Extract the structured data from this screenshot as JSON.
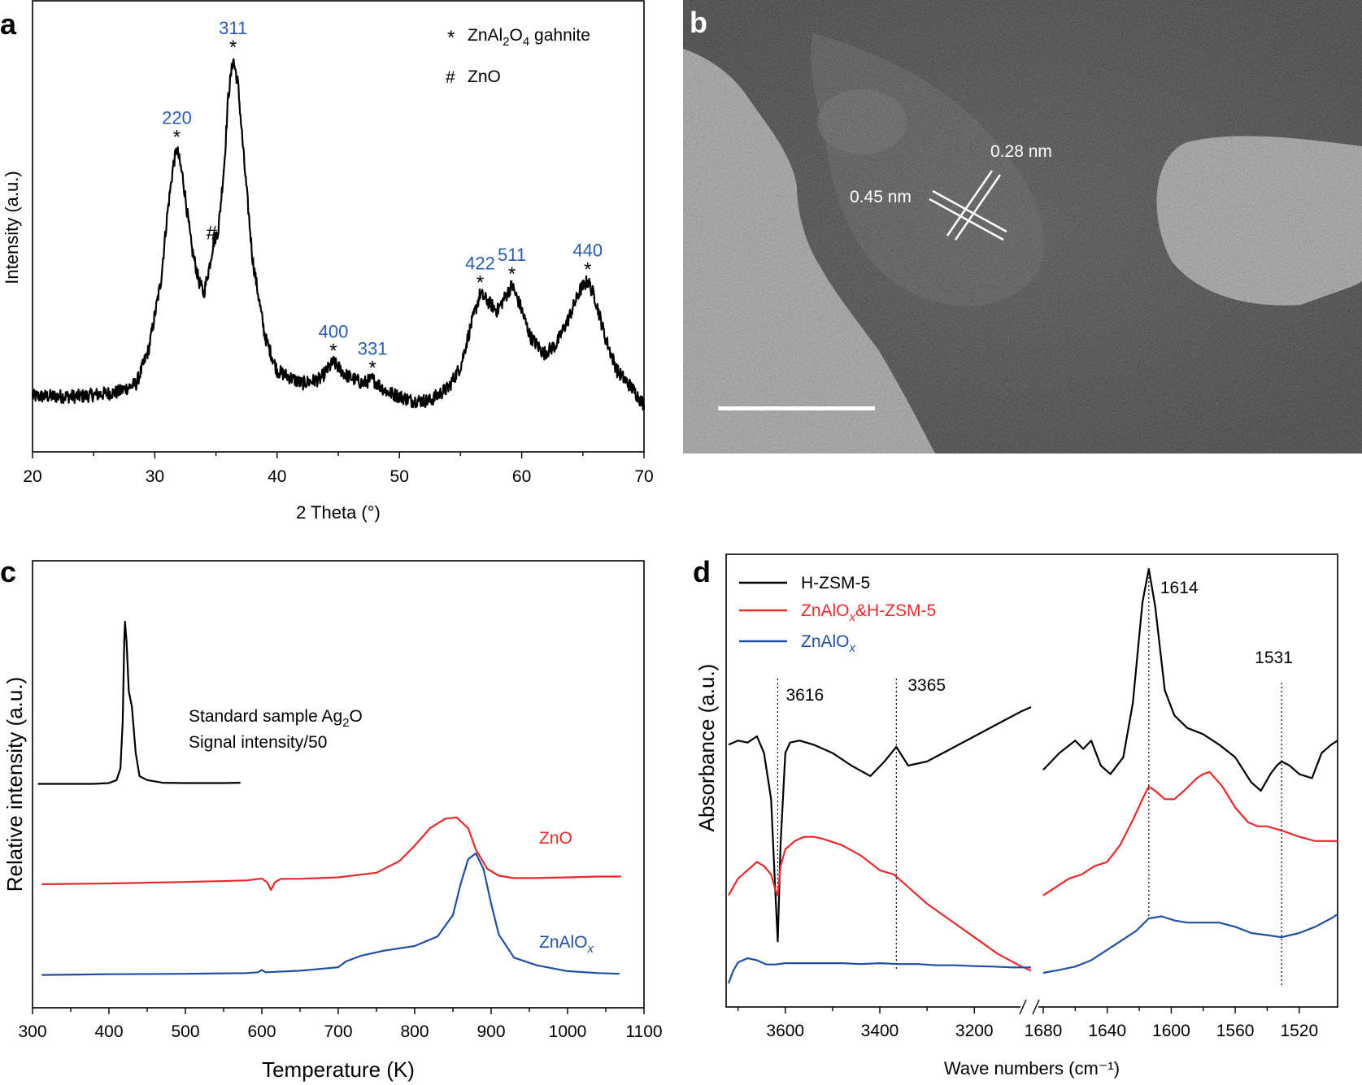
{
  "colors": {
    "black": "#000000",
    "red": "#e8282b",
    "blue": "#1f4fa3",
    "label_blue": "#2a5db0"
  },
  "panels": {
    "a": "a",
    "b": "b",
    "c": "c",
    "d": "d"
  },
  "chart_data": [
    {
      "panel": "a",
      "type": "line",
      "title": "",
      "xlabel": "2 Theta (°)",
      "ylabel": "Intensity (a.u.)",
      "xlim": [
        20,
        70
      ],
      "ylim": [
        0,
        100
      ],
      "xticks": [
        "20",
        "30",
        "40",
        "50",
        "60",
        "70"
      ],
      "series": [
        {
          "name": "XRD",
          "color": "#000000",
          "x": [
            20,
            24,
            27,
            28.5,
            29.5,
            30.5,
            31,
            31.5,
            31.8,
            32.3,
            33,
            33.6,
            34,
            34.5,
            34.8,
            35.2,
            35.7,
            36,
            36.4,
            36.8,
            37.3,
            38,
            39,
            40,
            42,
            43.5,
            44.6,
            45.6,
            47,
            47.8,
            49,
            51,
            52.5,
            54,
            55,
            55.8,
            56.6,
            57.3,
            58,
            58.6,
            59.2,
            59.9,
            60.7,
            61.8,
            62.8,
            63.8,
            64.8,
            65.4,
            66,
            66.8,
            67.8,
            69,
            70
          ],
          "y": [
            13,
            13,
            14,
            16,
            24,
            40,
            55,
            67,
            71,
            64,
            48,
            40,
            37,
            44,
            49,
            52,
            68,
            83,
            92,
            86,
            68,
            45,
            27,
            19,
            16,
            17,
            21,
            18,
            16,
            17,
            14,
            12,
            12,
            15,
            20,
            29,
            37,
            35,
            33,
            36,
            39,
            34,
            27,
            23,
            25,
            31,
            38,
            40,
            36,
            27,
            19,
            15,
            11
          ]
        }
      ],
      "peaks": [
        {
          "hkl": "220",
          "marker": "*",
          "x": 31.8,
          "y": 71
        },
        {
          "hkl": "#",
          "marker": "",
          "x": 34.6,
          "y": 49
        },
        {
          "hkl": "311",
          "marker": "*",
          "x": 36.4,
          "y": 92
        },
        {
          "hkl": "400",
          "marker": "*",
          "x": 44.6,
          "y": 21
        },
        {
          "hkl": "331",
          "marker": "*",
          "x": 47.8,
          "y": 17
        },
        {
          "hkl": "422",
          "marker": "*",
          "x": 56.6,
          "y": 37
        },
        {
          "hkl": "511",
          "marker": "*",
          "x": 59.2,
          "y": 39
        },
        {
          "hkl": "440",
          "marker": "*",
          "x": 65.4,
          "y": 40
        }
      ],
      "legend": [
        {
          "symbol": "*",
          "label": "ZnAl",
          "sub1": "2",
          "mid": "O",
          "sub2": "4",
          "tail": " gahnite"
        },
        {
          "symbol": "#",
          "label": "ZnO"
        }
      ]
    },
    {
      "panel": "c",
      "type": "line",
      "xlabel": "Temperature (K)",
      "ylabel": "Relative intensity (a.u.)",
      "xlim": [
        300,
        1100
      ],
      "ylim": [
        0,
        100
      ],
      "xticks": [
        "300",
        "400",
        "500",
        "600",
        "700",
        "800",
        "900",
        "1000",
        "1100"
      ],
      "inset_note": {
        "line1_a": "Standard sample Ag",
        "line1_sub": "2",
        "line1_b": "O",
        "line2": "Signal intensity/50"
      },
      "series": [
        {
          "name": "Standard sample Ag2O",
          "color": "#000000",
          "x": [
            307,
            340,
            380,
            400,
            410,
            415,
            418,
            420,
            421,
            423,
            426,
            430,
            435,
            440,
            450,
            470,
            500,
            550,
            572
          ],
          "y": [
            58,
            58,
            58,
            58.2,
            59,
            62,
            74,
            95,
            100,
            95,
            82,
            78,
            66,
            60,
            59,
            58.3,
            58.2,
            58.2,
            58.3
          ]
        },
        {
          "name": "ZnO",
          "label": "ZnO",
          "color": "#e8282b",
          "x": [
            312,
            400,
            500,
            580,
            600,
            607,
            612,
            617,
            625,
            650,
            700,
            750,
            780,
            800,
            820,
            840,
            855,
            870,
            880,
            895,
            910,
            930,
            960,
            1000,
            1040,
            1070
          ],
          "y": [
            32,
            32.2,
            32.6,
            33,
            33.5,
            32.5,
            30.5,
            32.5,
            33.4,
            33.4,
            33.8,
            35,
            38,
            42,
            46.5,
            49,
            49.3,
            46.5,
            41,
            36,
            34.2,
            33.6,
            33.6,
            33.8,
            34,
            34
          ]
        },
        {
          "name": "ZnAlOx",
          "label_a": "ZnAlO",
          "label_sub": "x",
          "color": "#1f4fa3",
          "x": [
            312,
            400,
            500,
            580,
            595,
            600,
            605,
            650,
            700,
            710,
            730,
            760,
            800,
            830,
            850,
            860,
            870,
            880,
            890,
            900,
            910,
            930,
            960,
            1000,
            1040,
            1068
          ],
          "y": [
            8.5,
            8.7,
            8.8,
            9,
            9.2,
            9.8,
            9.2,
            9.6,
            10.5,
            12,
            13.5,
            14.8,
            16,
            18.5,
            24,
            32,
            38.5,
            40,
            36,
            27,
            19,
            13,
            11,
            9.5,
            9,
            8.8
          ]
        }
      ]
    },
    {
      "panel": "d",
      "type": "line",
      "xlabel": "Wave numbers (cm⁻¹)",
      "ylabel": "Absorbance (a.u.)",
      "left_xlim": [
        3720,
        3080
      ],
      "right_xlim": [
        1680,
        1496
      ],
      "ylim": [
        0,
        100
      ],
      "left_xticks": [
        "3600",
        "3400",
        "3200"
      ],
      "right_xticks": [
        "1680",
        "1640",
        "1600",
        "1560",
        "1520"
      ],
      "annotations": [
        {
          "text": "3616",
          "x": 3616
        },
        {
          "text": "3365",
          "x": 3365
        },
        {
          "text": "1614",
          "x": 1614
        },
        {
          "text": "1531",
          "x": 1531
        }
      ],
      "legend": [
        {
          "label": "H-ZSM-5",
          "color": "#000000"
        },
        {
          "label_a": "ZnAlO",
          "label_sub": "x",
          "label_b": "&H-ZSM-5",
          "color": "#e8282b"
        },
        {
          "label_a": "ZnAlO",
          "label_sub": "x",
          "label_b": "",
          "color": "#1f4fa3"
        }
      ],
      "series": [
        {
          "name": "H-ZSM-5",
          "color": "#000000",
          "left": {
            "x": [
              3720,
              3700,
              3680,
              3660,
              3645,
              3630,
              3622,
              3616,
              3610,
              3600,
              3590,
              3570,
              3540,
              3500,
              3460,
              3420,
              3390,
              3365,
              3340,
              3300,
              3250,
              3200,
              3150,
              3100,
              3080
            ],
            "y": [
              58,
              59,
              58.5,
              60,
              56,
              45,
              25,
              11,
              34,
              56,
              58.5,
              59,
              58,
              56,
              53,
              50.5,
              54,
              57.5,
              53,
              54,
              57,
              60,
              63,
              66,
              67
            ]
          },
          "right": {
            "x": [
              1680,
              1670,
              1660,
              1655,
              1650,
              1644,
              1638,
              1630,
              1624,
              1618,
              1614,
              1610,
              1604,
              1598,
              1590,
              1580,
              1570,
              1560,
              1550,
              1544,
              1538,
              1534,
              1531,
              1526,
              1520,
              1512,
              1506,
              1500,
              1496
            ],
            "y": [
              52,
              56,
              59,
              57,
              59,
              53,
              51,
              55,
              68,
              92,
              100,
              91,
              71,
              65,
              62,
              60.5,
              58,
              55,
              49,
              47,
              51,
              53,
              54,
              53,
              51,
              50,
              56,
              58,
              59
            ]
          }
        },
        {
          "name": "ZnAlOx&H-ZSM-5",
          "color": "#e8282b",
          "left": {
            "x": [
              3720,
              3700,
              3680,
              3660,
              3645,
              3630,
              3620,
              3616,
              3610,
              3600,
              3580,
              3560,
              3540,
              3520,
              3480,
              3440,
              3400,
              3370,
              3340,
              3300,
              3250,
              3200,
              3150,
              3100,
              3080
            ],
            "y": [
              22,
              26,
              28,
              30,
              29,
              27,
              23,
              22,
              29,
              33,
              35,
              36,
              36,
              35.5,
              34,
              31.5,
              28,
              27,
              24,
              20,
              16,
              12,
              8,
              5,
              4
            ]
          },
          "right": {
            "x": [
              1680,
              1672,
              1664,
              1656,
              1648,
              1640,
              1632,
              1624,
              1618,
              1614,
              1610,
              1604,
              1598,
              1592,
              1584,
              1580,
              1576,
              1568,
              1560,
              1552,
              1546,
              1540,
              1531,
              1520,
              1510,
              1500,
              1496
            ],
            "y": [
              22,
              24,
              26,
              27,
              29,
              30,
              34,
              40,
              45,
              48,
              47,
              45,
              45,
              47,
              50,
              51,
              51.5,
              48,
              43,
              39.5,
              38.5,
              38.5,
              37.5,
              36,
              35,
              35,
              35
            ]
          }
        },
        {
          "name": "ZnAlOx",
          "color": "#1f4fa3",
          "left": {
            "x": [
              3720,
              3710,
              3700,
              3680,
              3660,
              3640,
              3620,
              3600,
              3560,
              3520,
              3480,
              3440,
              3400,
              3360,
              3320,
              3280,
              3240,
              3200,
              3160,
              3120,
              3080
            ],
            "y": [
              1,
              4,
              6,
              7,
              6.5,
              5.5,
              5.5,
              5.8,
              5.8,
              5.8,
              5.8,
              5.6,
              5.8,
              5.6,
              5.6,
              5.3,
              5.3,
              5.1,
              5,
              4.8,
              4.8
            ]
          },
          "right": {
            "x": [
              1680,
              1670,
              1660,
              1650,
              1640,
              1630,
              1622,
              1614,
              1606,
              1598,
              1590,
              1580,
              1570,
              1560,
              1550,
              1540,
              1531,
              1520,
              1510,
              1500,
              1496
            ],
            "y": [
              3.5,
              4.2,
              5,
              6.5,
              9,
              11.5,
              13.5,
              16.5,
              17,
              16,
              15.5,
              15.5,
              15.5,
              14.5,
              13,
              12.5,
              12,
              13,
              14.5,
              16.5,
              17.5
            ]
          }
        }
      ]
    }
  ],
  "micrograph": {
    "panel": "b",
    "annotations": [
      "0.28 nm",
      "0.45 nm"
    ]
  }
}
